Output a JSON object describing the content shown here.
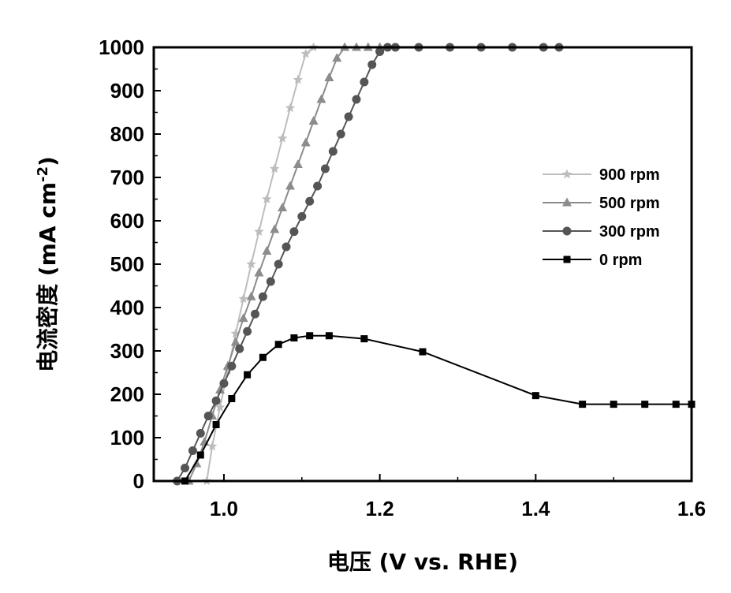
{
  "chart_data": {
    "type": "line",
    "xlabel": "电压 (V vs. RHE)",
    "ylabel_main": "电流密度 (mA cm",
    "ylabel_sup": "-2",
    "ylabel_close": ")",
    "xlim": [
      0.91,
      1.6
    ],
    "ylim": [
      0,
      1000
    ],
    "xticks": [
      1.0,
      1.2,
      1.4,
      1.6
    ],
    "xtick_labels": [
      "1.0",
      "1.2",
      "1.4",
      "1.6"
    ],
    "yticks": [
      0,
      100,
      200,
      300,
      400,
      500,
      600,
      700,
      800,
      900,
      1000
    ],
    "ytick_labels": [
      "0",
      "100",
      "200",
      "300",
      "400",
      "500",
      "600",
      "700",
      "800",
      "900",
      "1000"
    ],
    "legend_position": "right",
    "series": [
      {
        "name": "900 rpm",
        "marker": "star",
        "color": "#bdbdbd",
        "x": [
          0.978,
          0.985,
          0.995,
          1.005,
          1.015,
          1.025,
          1.035,
          1.045,
          1.055,
          1.065,
          1.075,
          1.085,
          1.095,
          1.105,
          1.115
        ],
        "y": [
          0,
          80,
          170,
          255,
          340,
          420,
          500,
          575,
          650,
          720,
          790,
          860,
          925,
          985,
          1000
        ]
      },
      {
        "name": "500 rpm",
        "marker": "triangle",
        "color": "#8c8c8c",
        "x": [
          0.955,
          0.965,
          0.975,
          0.985,
          0.995,
          1.005,
          1.015,
          1.025,
          1.035,
          1.045,
          1.055,
          1.065,
          1.075,
          1.085,
          1.095,
          1.105,
          1.115,
          1.125,
          1.135,
          1.145,
          1.155,
          1.17,
          1.185,
          1.2
        ],
        "y": [
          0,
          40,
          90,
          150,
          210,
          265,
          320,
          375,
          425,
          480,
          530,
          580,
          630,
          680,
          730,
          780,
          830,
          880,
          930,
          975,
          1000,
          1000,
          1000,
          1000
        ]
      },
      {
        "name": "300 rpm",
        "marker": "circle",
        "color": "#555555",
        "x": [
          0.94,
          0.95,
          0.96,
          0.97,
          0.98,
          0.99,
          1.0,
          1.01,
          1.02,
          1.03,
          1.04,
          1.05,
          1.06,
          1.07,
          1.08,
          1.09,
          1.1,
          1.11,
          1.12,
          1.13,
          1.14,
          1.15,
          1.16,
          1.17,
          1.18,
          1.19,
          1.2,
          1.21,
          1.22,
          1.25,
          1.29,
          1.33,
          1.37,
          1.41,
          1.43
        ],
        "y": [
          0,
          30,
          70,
          110,
          150,
          185,
          225,
          265,
          305,
          345,
          385,
          425,
          460,
          500,
          540,
          575,
          610,
          645,
          680,
          720,
          760,
          800,
          840,
          880,
          920,
          960,
          990,
          1000,
          1000,
          1000,
          1000,
          1000,
          1000,
          1000,
          1000
        ]
      },
      {
        "name": "0 rpm",
        "marker": "square",
        "color": "#000000",
        "x": [
          0.95,
          0.97,
          0.99,
          1.01,
          1.03,
          1.05,
          1.07,
          1.09,
          1.11,
          1.135,
          1.18,
          1.255,
          1.4,
          1.46,
          1.5,
          1.54,
          1.58,
          1.6
        ],
        "y": [
          0,
          60,
          130,
          190,
          245,
          285,
          315,
          330,
          335,
          335,
          328,
          298,
          197,
          177,
          177,
          177,
          177,
          177
        ]
      }
    ]
  }
}
